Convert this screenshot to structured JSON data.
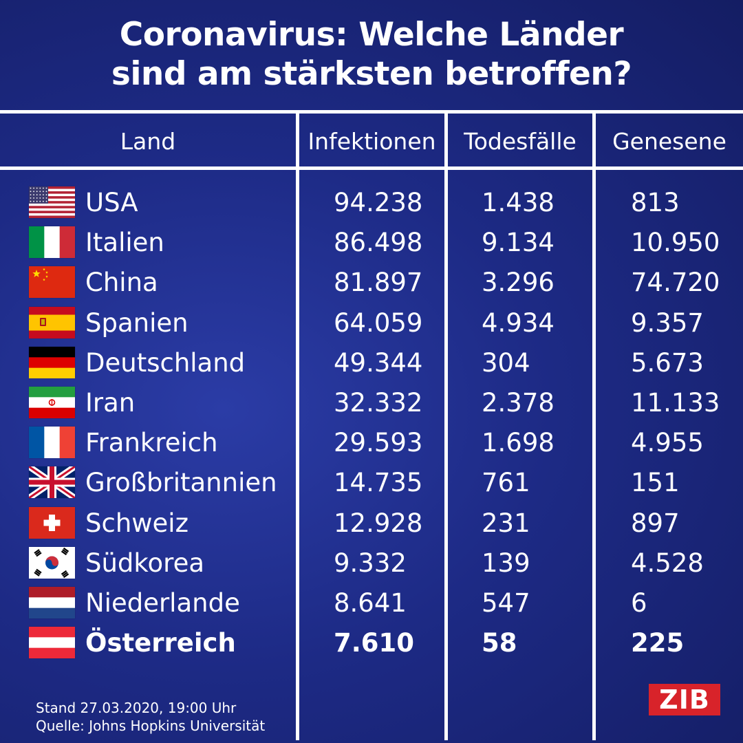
{
  "title": {
    "line1": "Coronavirus: Welche Länder",
    "line2": "sind am stärksten betroffen?"
  },
  "colors": {
    "background": "#1d2a85",
    "text": "#ffffff",
    "brand_red": "#d8232a"
  },
  "chart_data": {
    "type": "table",
    "title": "Coronavirus: Welche Länder sind am stärksten betroffen?",
    "columns": [
      "Land",
      "Infektionen",
      "Todesfälle",
      "Genesene"
    ],
    "rows": [
      {
        "flag": "usa-flag-icon",
        "land": "USA",
        "infektionen": "94.238",
        "todesfaelle": "1.438",
        "genesene": "813"
      },
      {
        "flag": "italy-flag-icon",
        "land": "Italien",
        "infektionen": "86.498",
        "todesfaelle": "9.134",
        "genesene": "10.950"
      },
      {
        "flag": "china-flag-icon",
        "land": "China",
        "infektionen": "81.897",
        "todesfaelle": "3.296",
        "genesene": "74.720"
      },
      {
        "flag": "spain-flag-icon",
        "land": "Spanien",
        "infektionen": "64.059",
        "todesfaelle": "4.934",
        "genesene": "9.357"
      },
      {
        "flag": "germany-flag-icon",
        "land": "Deutschland",
        "infektionen": "49.344",
        "todesfaelle": "304",
        "genesene": "5.673"
      },
      {
        "flag": "iran-flag-icon",
        "land": "Iran",
        "infektionen": "32.332",
        "todesfaelle": "2.378",
        "genesene": "11.133"
      },
      {
        "flag": "france-flag-icon",
        "land": "Frankreich",
        "infektionen": "29.593",
        "todesfaelle": "1.698",
        "genesene": "4.955"
      },
      {
        "flag": "uk-flag-icon",
        "land": "Großbritannien",
        "infektionen": "14.735",
        "todesfaelle": "761",
        "genesene": "151"
      },
      {
        "flag": "switzerland-flag-icon",
        "land": "Schweiz",
        "infektionen": "12.928",
        "todesfaelle": "231",
        "genesene": "897"
      },
      {
        "flag": "south-korea-flag-icon",
        "land": "Südkorea",
        "infektionen": "9.332",
        "todesfaelle": "139",
        "genesene": "4.528"
      },
      {
        "flag": "netherlands-flag-icon",
        "land": "Niederlande",
        "infektionen": "8.641",
        "todesfaelle": "547",
        "genesene": "6"
      },
      {
        "flag": "austria-flag-icon",
        "land": "Österreich",
        "infektionen": "7.610",
        "todesfaelle": "58",
        "genesene": "225",
        "highlight": true
      }
    ]
  },
  "footer": {
    "stand": "Stand 27.03.2020, 19:00 Uhr",
    "quelle": "Quelle: Johns Hopkins Universität"
  },
  "logo": {
    "text": "ZIB"
  }
}
